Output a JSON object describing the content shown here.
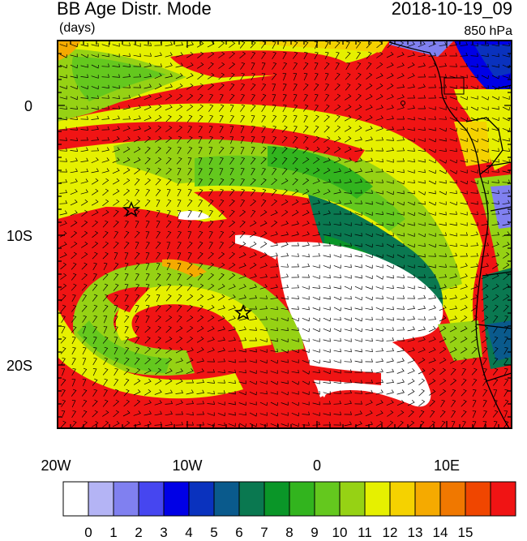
{
  "title": "BB Age Distr. Mode",
  "units": "(days)",
  "datetime": "2018-10-19_09",
  "level": "850 hPa",
  "axes": {
    "lon_ticks": [
      "20W",
      "10W",
      "0",
      "10E"
    ],
    "lat_ticks": [
      "0",
      "10S",
      "20S"
    ]
  },
  "colorbar": {
    "labels": [
      "0",
      "1",
      "2",
      "3",
      "4",
      "5",
      "6",
      "7",
      "8",
      "9",
      "10",
      "11",
      "12",
      "13",
      "14",
      "15"
    ],
    "colors": [
      "#ffffff",
      "#b4b4f5",
      "#8080f0",
      "#4646f0",
      "#0000e6",
      "#0a32be",
      "#0a5a8c",
      "#0a7850",
      "#0a9628",
      "#32b41e",
      "#64c81e",
      "#96d214",
      "#e6f000",
      "#f5d200",
      "#f5aa00",
      "#f07800",
      "#f04600",
      "#f01414"
    ]
  },
  "legend_colors": {
    "coast": "#000000"
  }
}
